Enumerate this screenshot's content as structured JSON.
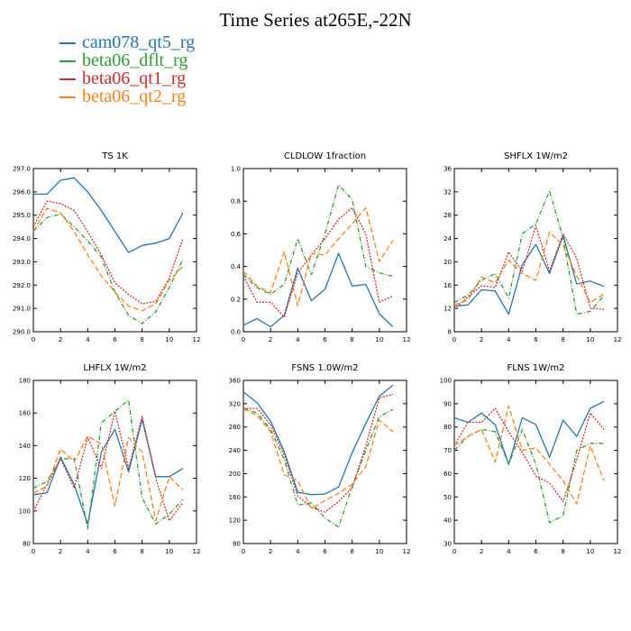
{
  "title": "Time Series at265E,-22N",
  "legend": [
    {
      "name": "cam078_qt5_rg",
      "color": "#1f77b4",
      "dash": ""
    },
    {
      "name": "beta06_dflt_rg",
      "color": "#2ca02c",
      "dash": "5,2,1,2"
    },
    {
      "name": "beta06_qt1_rg",
      "color": "#d62728",
      "dash": "2,1.5"
    },
    {
      "name": "beta06_qt2_rg",
      "color": "#ff7f0e",
      "dash": "6,3"
    }
  ],
  "chart_data": [
    {
      "type": "line",
      "title": "TS  1K",
      "x": [
        0,
        1,
        2,
        3,
        4,
        5,
        6,
        7,
        8,
        9,
        10,
        11
      ],
      "xlim": [
        0,
        12
      ],
      "xticks": [
        0,
        2,
        4,
        6,
        8,
        10,
        12
      ],
      "ylim": [
        290.0,
        297.0
      ],
      "yticks": [
        "290.0",
        "291.0",
        "292.0",
        "293.0",
        "294.0",
        "295.0",
        "296.0",
        "297.0"
      ],
      "series": [
        {
          "name": "cam078_qt5_rg",
          "values": [
            295.9,
            295.9,
            296.5,
            296.6,
            296.0,
            295.2,
            294.3,
            293.4,
            293.7,
            293.8,
            294.0,
            295.1
          ]
        },
        {
          "name": "beta06_dflt_rg",
          "values": [
            294.3,
            294.9,
            295.05,
            294.5,
            293.9,
            293.2,
            291.7,
            290.7,
            290.35,
            290.85,
            291.9,
            293.1
          ]
        },
        {
          "name": "beta06_qt1_rg",
          "values": [
            294.5,
            295.6,
            295.5,
            295.2,
            294.3,
            293.3,
            292.1,
            291.6,
            291.2,
            291.3,
            292.3,
            294.0
          ]
        },
        {
          "name": "beta06_qt2_rg",
          "values": [
            294.3,
            295.3,
            295.1,
            294.3,
            293.3,
            292.4,
            291.7,
            291.1,
            290.9,
            291.2,
            292.2,
            292.8
          ]
        }
      ]
    },
    {
      "type": "line",
      "title": "CLDLOW  1fraction",
      "x": [
        0,
        1,
        2,
        3,
        4,
        5,
        6,
        7,
        8,
        9,
        10,
        11
      ],
      "xlim": [
        0,
        12
      ],
      "xticks": [
        0,
        2,
        4,
        6,
        8,
        10,
        12
      ],
      "ylim": [
        0,
        1
      ],
      "yticks": [
        "0.0",
        "0.2",
        "0.4",
        "0.6",
        "0.8",
        "1.0"
      ],
      "series": [
        {
          "name": "cam078_qt5_rg",
          "values": [
            0.04,
            0.08,
            0.03,
            0.1,
            0.39,
            0.19,
            0.26,
            0.48,
            0.28,
            0.29,
            0.11,
            0.03
          ]
        },
        {
          "name": "beta06_dflt_rg",
          "values": [
            0.35,
            0.27,
            0.23,
            0.29,
            0.57,
            0.35,
            0.6,
            0.9,
            0.81,
            0.4,
            0.36,
            0.34
          ]
        },
        {
          "name": "beta06_qt1_rg",
          "values": [
            0.34,
            0.18,
            0.18,
            0.09,
            0.36,
            0.47,
            0.57,
            0.69,
            0.76,
            0.6,
            0.18,
            0.22
          ]
        },
        {
          "name": "beta06_qt2_rg",
          "values": [
            0.37,
            0.28,
            0.24,
            0.49,
            0.16,
            0.48,
            0.47,
            0.57,
            0.66,
            0.76,
            0.43,
            0.56
          ]
        }
      ]
    },
    {
      "type": "line",
      "title": "SHFLX  1W/m2",
      "x": [
        0,
        1,
        2,
        3,
        4,
        5,
        6,
        7,
        8,
        9,
        10,
        11
      ],
      "xlim": [
        0,
        12
      ],
      "xticks": [
        0,
        2,
        4,
        6,
        8,
        10,
        12
      ],
      "ylim": [
        8,
        36
      ],
      "yticks": [
        "8",
        "12",
        "16",
        "20",
        "24",
        "28",
        "32",
        "36"
      ],
      "series": [
        {
          "name": "cam078_qt5_rg",
          "values": [
            12.4,
            12.6,
            15.2,
            15.0,
            11.0,
            19.5,
            23.0,
            18.0,
            24.5,
            16.2,
            16.7,
            15.8
          ]
        },
        {
          "name": "beta06_dflt_rg",
          "values": [
            13.0,
            14.3,
            16.8,
            18.0,
            13.8,
            24.8,
            26.5,
            32.2,
            24.0,
            11.0,
            11.5,
            14.2
          ]
        },
        {
          "name": "beta06_qt1_rg",
          "values": [
            11.9,
            14.0,
            15.9,
            15.6,
            21.7,
            18.4,
            26.2,
            18.4,
            24.8,
            20.6,
            12.1,
            11.8
          ]
        },
        {
          "name": "beta06_qt2_rg",
          "values": [
            12.6,
            13.4,
            17.4,
            16.4,
            20.3,
            18.0,
            16.8,
            25.1,
            22.8,
            17.6,
            13.0,
            14.5
          ]
        }
      ]
    },
    {
      "type": "line",
      "title": "LHFLX  1W/m2",
      "x": [
        0,
        1,
        2,
        3,
        4,
        5,
        6,
        7,
        8,
        9,
        10,
        11
      ],
      "xlim": [
        0,
        12
      ],
      "xticks": [
        0,
        2,
        4,
        6,
        8,
        10,
        12
      ],
      "ylim": [
        80,
        180
      ],
      "yticks": [
        "80",
        "100",
        "120",
        "140",
        "160",
        "180"
      ],
      "series": [
        {
          "name": "cam078_qt5_rg",
          "values": [
            110,
            111,
            133,
            116,
            92,
            136,
            150,
            124,
            156,
            121,
            121,
            126
          ]
        },
        {
          "name": "beta06_dflt_rg",
          "values": [
            114,
            118,
            132,
            132,
            89,
            154,
            161,
            168,
            108,
            92,
            98,
            107
          ]
        },
        {
          "name": "beta06_qt1_rg",
          "values": [
            100,
            116,
            132,
            114,
            145,
            126,
            161,
            126,
            158,
            120,
            94,
            105
          ]
        },
        {
          "name": "beta06_qt2_rg",
          "values": [
            111,
            115,
            138,
            130,
            146,
            141,
            103,
            145,
            136,
            94,
            121,
            113
          ]
        }
      ]
    },
    {
      "type": "line",
      "title": "FSNS  1.0W/m2",
      "x": [
        0,
        1,
        2,
        3,
        4,
        5,
        6,
        7,
        8,
        9,
        10,
        11
      ],
      "xlim": [
        0,
        12
      ],
      "xticks": [
        0,
        2,
        4,
        6,
        8,
        10,
        12
      ],
      "ylim": [
        80,
        360
      ],
      "yticks": [
        "80",
        "120",
        "160",
        "200",
        "240",
        "280",
        "320",
        "360"
      ],
      "series": [
        {
          "name": "cam078_qt5_rg",
          "values": [
            340,
            322,
            290,
            238,
            168,
            164,
            165,
            177,
            236,
            286,
            333,
            352
          ]
        },
        {
          "name": "beta06_dflt_rg",
          "values": [
            312,
            304,
            276,
            224,
            146,
            150,
            124,
            108,
            178,
            240,
            298,
            310
          ]
        },
        {
          "name": "beta06_qt1_rg",
          "values": [
            312,
            312,
            284,
            232,
            162,
            142,
            134,
            152,
            176,
            248,
            330,
            336
          ]
        },
        {
          "name": "beta06_qt2_rg",
          "values": [
            311,
            300,
            272,
            198,
            188,
            140,
            154,
            166,
            182,
            212,
            292,
            272
          ]
        }
      ]
    },
    {
      "type": "line",
      "title": "FLNS  1W/m2",
      "x": [
        0,
        1,
        2,
        3,
        4,
        5,
        6,
        7,
        8,
        9,
        10,
        11
      ],
      "xlim": [
        0,
        12
      ],
      "xticks": [
        0,
        2,
        4,
        6,
        8,
        10,
        12
      ],
      "ylim": [
        30,
        100
      ],
      "yticks": [
        "30",
        "40",
        "50",
        "60",
        "70",
        "80",
        "90",
        "100"
      ],
      "series": [
        {
          "name": "cam078_qt5_rg",
          "values": [
            84,
            82,
            86,
            81,
            64,
            84,
            81,
            67,
            83,
            76,
            88,
            91
          ]
        },
        {
          "name": "beta06_dflt_rg",
          "values": [
            70,
            76,
            79,
            78,
            64,
            79,
            64,
            39,
            42,
            70,
            73,
            73
          ]
        },
        {
          "name": "beta06_qt1_rg",
          "values": [
            72,
            82,
            82,
            88,
            78,
            69,
            59,
            56,
            48,
            66,
            86,
            79
          ]
        },
        {
          "name": "beta06_qt2_rg",
          "values": [
            72,
            76,
            79,
            65,
            89,
            70,
            71,
            64,
            57,
            47,
            72,
            57
          ]
        }
      ]
    }
  ]
}
